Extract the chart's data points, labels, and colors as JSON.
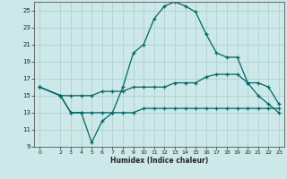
{
  "xlabel": "Humidex (Indice chaleur)",
  "bg_color": "#cde8e8",
  "grid_color": "#aacccc",
  "line_color": "#006666",
  "xlim": [
    -0.5,
    23.5
  ],
  "ylim": [
    9,
    26
  ],
  "yticks": [
    9,
    11,
    13,
    15,
    17,
    19,
    21,
    23,
    25
  ],
  "xticks": [
    0,
    2,
    3,
    4,
    5,
    6,
    7,
    8,
    9,
    10,
    11,
    12,
    13,
    14,
    15,
    16,
    17,
    18,
    19,
    20,
    21,
    22,
    23
  ],
  "line1_x": [
    0,
    2,
    3,
    4,
    5,
    6,
    7,
    8,
    9,
    10,
    11,
    12,
    13,
    14,
    15,
    16,
    17,
    18,
    19,
    20,
    21,
    22,
    23
  ],
  "line1_y": [
    16.0,
    15.0,
    13.0,
    13.0,
    9.5,
    12.0,
    13.0,
    16.0,
    20.0,
    21.0,
    24.0,
    25.5,
    26.0,
    25.5,
    24.8,
    22.2,
    20.0,
    19.5,
    19.5,
    16.5,
    15.0,
    14.0,
    13.0
  ],
  "line2_x": [
    0,
    2,
    3,
    4,
    5,
    6,
    7,
    8,
    9,
    10,
    11,
    12,
    13,
    14,
    15,
    16,
    17,
    18,
    19,
    20,
    21,
    22,
    23
  ],
  "line2_y": [
    16.0,
    15.0,
    15.0,
    15.0,
    15.0,
    15.5,
    15.5,
    15.5,
    16.0,
    16.0,
    16.0,
    16.0,
    16.5,
    16.5,
    16.5,
    17.2,
    17.5,
    17.5,
    17.5,
    16.5,
    16.5,
    16.0,
    14.0
  ],
  "line3_x": [
    0,
    2,
    3,
    4,
    5,
    6,
    7,
    8,
    9,
    10,
    11,
    12,
    13,
    14,
    15,
    16,
    17,
    18,
    19,
    20,
    21,
    22,
    23
  ],
  "line3_y": [
    16.0,
    15.0,
    13.0,
    13.0,
    13.0,
    13.0,
    13.0,
    13.0,
    13.0,
    13.5,
    13.5,
    13.5,
    13.5,
    13.5,
    13.5,
    13.5,
    13.5,
    13.5,
    13.5,
    13.5,
    13.5,
    13.5,
    13.5
  ]
}
